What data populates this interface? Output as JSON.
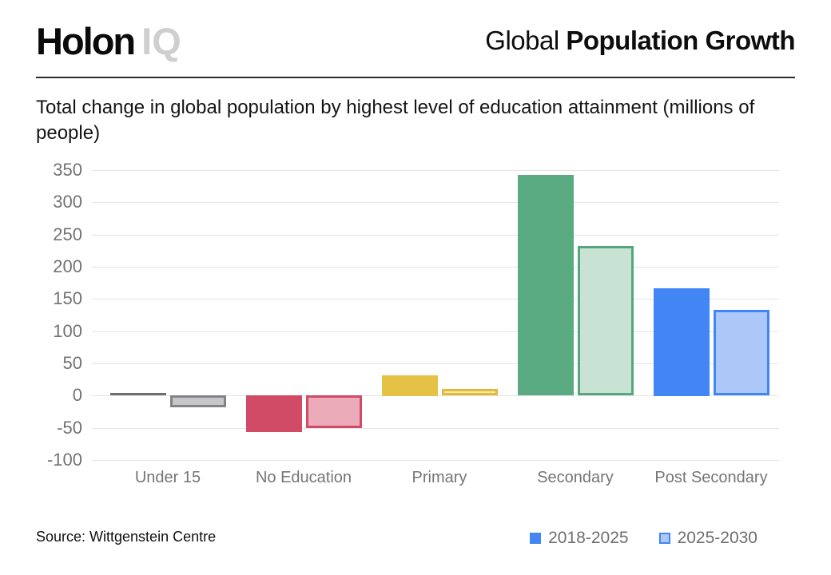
{
  "header": {
    "logo_primary": "Holon",
    "logo_secondary": "IQ",
    "title_regular": "Global",
    "title_bold": "Population Growth"
  },
  "subtitle": "Total change in global population by highest level of education attainment (millions of people)",
  "footer": {
    "source": "Source: Wittgenstein Centre",
    "legend": [
      {
        "label": "2018-2025",
        "fill": "#4285f4",
        "border": "#4285f4"
      },
      {
        "label": "2025-2030",
        "fill": "#abc8f9",
        "border": "#4285f4"
      }
    ]
  },
  "chart_data": {
    "type": "bar",
    "title": "Global Population Growth",
    "subtitle": "Total change in global population by highest level of education attainment (millions of people)",
    "categories": [
      "Under 15",
      "No Education",
      "Primary",
      "Secondary",
      "Post Secondary"
    ],
    "series": [
      {
        "name": "2018-2025",
        "values": [
          4,
          -57,
          32,
          342,
          167
        ]
      },
      {
        "name": "2025-2030",
        "values": [
          -18,
          -51,
          10,
          232,
          133
        ]
      }
    ],
    "ylim": [
      -100,
      350
    ],
    "yticks": [
      350,
      300,
      250,
      200,
      150,
      100,
      50,
      0,
      -50,
      -100
    ],
    "grid": true,
    "legend_position": "bottom-right",
    "category_colors": [
      {
        "solid": "#6d6e71",
        "light_fill": "#c7c7c9",
        "light_border": "#828386"
      },
      {
        "solid": "#d14a66",
        "light_fill": "#ecabb9",
        "light_border": "#d14a66"
      },
      {
        "solid": "#e5c146",
        "light_fill": "#f5e9b0",
        "light_border": "#e0ba38"
      },
      {
        "solid": "#5aaa82",
        "light_fill": "#c8e2d4",
        "light_border": "#55a67d"
      },
      {
        "solid": "#4285f4",
        "light_fill": "#abc8f9",
        "light_border": "#4285f4"
      }
    ]
  }
}
